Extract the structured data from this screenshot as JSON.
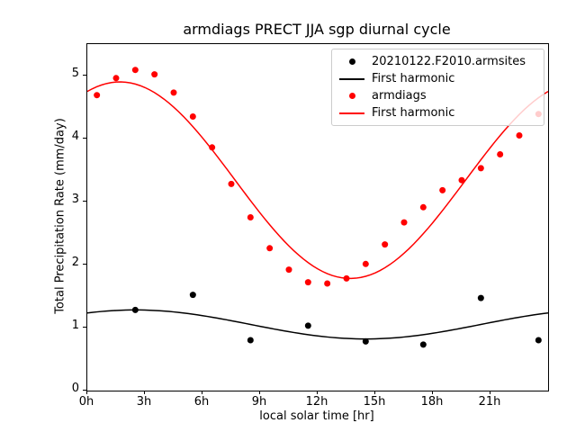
{
  "figure": {
    "background": "#ffffff",
    "frame_color": "#000000"
  },
  "chart_data": {
    "type": "scatter",
    "title": "armdiags PRECT JJA sgp diurnal cycle",
    "xlabel": "local solar time [hr]",
    "ylabel": "Total Precipitation Rate (mm/day)",
    "xlim": [
      0,
      24
    ],
    "ylim": [
      0,
      5.5
    ],
    "grid": false,
    "legend_position": "upper right",
    "xticks": [
      {
        "value": 0,
        "label": "0h"
      },
      {
        "value": 3,
        "label": "3h"
      },
      {
        "value": 6,
        "label": "6h"
      },
      {
        "value": 9,
        "label": "9h"
      },
      {
        "value": 12,
        "label": "12h"
      },
      {
        "value": 15,
        "label": "15h"
      },
      {
        "value": 18,
        "label": "18h"
      },
      {
        "value": 21,
        "label": "21h"
      }
    ],
    "yticks": [
      {
        "value": 0,
        "label": "0"
      },
      {
        "value": 1,
        "label": "1"
      },
      {
        "value": 2,
        "label": "2"
      },
      {
        "value": 3,
        "label": "3"
      },
      {
        "value": 4,
        "label": "4"
      },
      {
        "value": 5,
        "label": "5"
      }
    ],
    "series": [
      {
        "name": "20210122.F2010.armsites",
        "kind": "scatter",
        "color": "#000000",
        "marker_radius": 3.5,
        "x": [
          2.5,
          5.5,
          8.5,
          11.5,
          14.5,
          17.5,
          20.5,
          23.5
        ],
        "y": [
          1.28,
          1.52,
          0.8,
          1.03,
          0.78,
          0.73,
          1.47,
          0.8
        ]
      },
      {
        "name": "First harmonic",
        "kind": "line",
        "color": "#000000",
        "line_width": 1.5,
        "harmonic": {
          "mean": 1.05,
          "amplitude": 0.23,
          "peak_hour": 2.5,
          "period": 24
        }
      },
      {
        "name": "armdiags",
        "kind": "scatter",
        "color": "#ff0000",
        "marker_radius": 3.5,
        "x": [
          0.5,
          1.5,
          2.5,
          3.5,
          4.5,
          5.5,
          6.5,
          7.5,
          8.5,
          9.5,
          10.5,
          11.5,
          12.5,
          13.5,
          14.5,
          15.5,
          16.5,
          17.5,
          18.5,
          19.5,
          20.5,
          21.5,
          22.5,
          23.5
        ],
        "y": [
          4.69,
          4.96,
          5.09,
          5.02,
          4.73,
          4.35,
          3.86,
          3.28,
          2.75,
          2.26,
          1.92,
          1.72,
          1.7,
          1.78,
          2.01,
          2.32,
          2.67,
          2.91,
          3.18,
          3.34,
          3.53,
          3.75,
          4.05,
          4.39
        ]
      },
      {
        "name": "First harmonic",
        "kind": "line",
        "color": "#ff0000",
        "line_width": 1.5,
        "harmonic": {
          "mean": 3.34,
          "amplitude": 1.56,
          "peak_hour": 1.7,
          "period": 24
        }
      }
    ]
  },
  "legend": {
    "entries": [
      {
        "label": "20210122.F2010.armsites",
        "marker": "dot",
        "color": "#000000"
      },
      {
        "label": "First harmonic",
        "marker": "line",
        "color": "#000000"
      },
      {
        "label": "armdiags",
        "marker": "dot",
        "color": "#ff0000"
      },
      {
        "label": "First harmonic",
        "marker": "line",
        "color": "#ff0000"
      }
    ]
  }
}
